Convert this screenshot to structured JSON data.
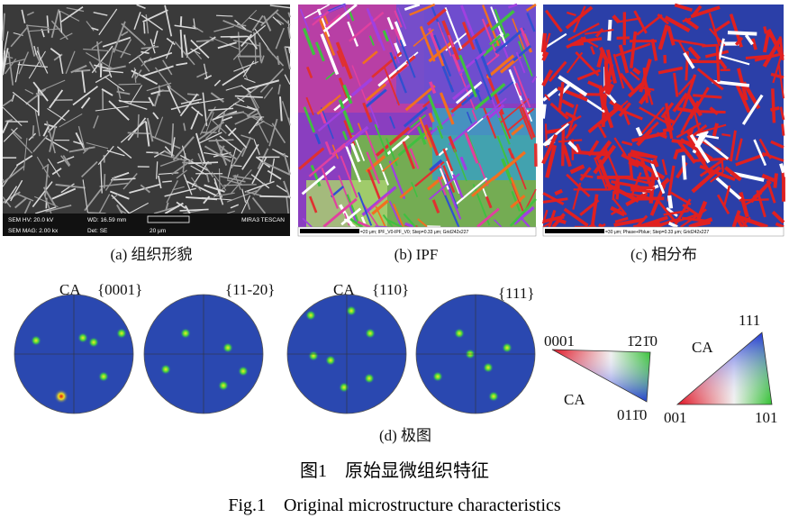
{
  "panels": [
    {
      "caption": "(a) 组织形貌",
      "sem_info": [
        "SEM HV: 20.0 kV",
        "WD: 16.59 mm",
        "MIRA3 TESCAN",
        "SEM MAG: 2.00 kx",
        "Det: SE",
        "20 μm"
      ]
    },
    {
      "caption": "(b) IPF",
      "scale_text": "=20 μm; IPF_V0-IPF_V0; Step=0.33 μm; Grid242x227"
    },
    {
      "caption": "(c) 相分布",
      "scale_text": "=30 μm; Phase+Pblue; Step=0.33 μm; Grid242x227"
    }
  ],
  "pole_figures": {
    "caption": "(d) 极图",
    "labels": [
      "CA",
      "{0001}",
      "{11-20}",
      "CA",
      "{110}",
      "{111}"
    ]
  },
  "ipf_hexagonal": {
    "corners": [
      "0001",
      "1̄21̄0",
      "011̄0"
    ],
    "label": "CA"
  },
  "ipf_cubic": {
    "corners": [
      "111",
      "001",
      "101"
    ],
    "label": "CA"
  },
  "figure_caption": {
    "zh": "图1　原始显微组织特征",
    "en": "Fig.1　Original microstructure characteristics"
  }
}
